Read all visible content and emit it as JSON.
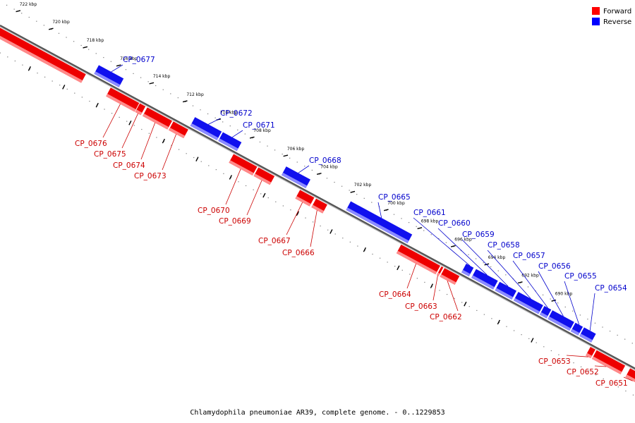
{
  "title": "Chlamydophila pneumoniae AR39, complete genome. - 0..1229853",
  "legend": {
    "forward": "Forward",
    "reverse": "Reverse",
    "forward_color": "#ff0000",
    "reverse_color": "#0000ff"
  },
  "colors": {
    "forward_fill": "#ee0000",
    "forward_shade": "#ff8a8a",
    "reverse_fill": "#1010ee",
    "reverse_shade": "#8a8aff",
    "forward_label": "#cc0000",
    "reverse_label": "#0000cc"
  },
  "kbp_ticks": [
    {
      "label": "722 kbp"
    },
    {
      "label": "720 kbp"
    },
    {
      "label": "718 kbp"
    },
    {
      "label": "716 kbp"
    },
    {
      "label": "714 kbp"
    },
    {
      "label": "712 kbp"
    },
    {
      "label": "710 kbp"
    },
    {
      "label": "708 kbp"
    },
    {
      "label": "706 kbp"
    },
    {
      "label": "704 kbp"
    },
    {
      "label": "702 kbp"
    },
    {
      "label": "700 kbp"
    },
    {
      "label": "698 kbp"
    },
    {
      "label": "696 kbp"
    },
    {
      "label": "694 kbp"
    },
    {
      "label": "692 kbp"
    },
    {
      "label": "690 kbp"
    }
  ],
  "genes": [
    {
      "name": "CP_0677",
      "strand": "reverse"
    },
    {
      "name": "CP_0676",
      "strand": "forward"
    },
    {
      "name": "CP_0675",
      "strand": "forward"
    },
    {
      "name": "CP_0674",
      "strand": "forward"
    },
    {
      "name": "CP_0673",
      "strand": "forward"
    },
    {
      "name": "CP_0672",
      "strand": "reverse"
    },
    {
      "name": "CP_0671",
      "strand": "reverse"
    },
    {
      "name": "CP_0670",
      "strand": "forward"
    },
    {
      "name": "CP_0669",
      "strand": "forward"
    },
    {
      "name": "CP_0668",
      "strand": "reverse"
    },
    {
      "name": "CP_0667",
      "strand": "forward"
    },
    {
      "name": "CP_0666",
      "strand": "forward"
    },
    {
      "name": "CP_0665",
      "strand": "reverse"
    },
    {
      "name": "CP_0664",
      "strand": "forward"
    },
    {
      "name": "CP_0663",
      "strand": "forward"
    },
    {
      "name": "CP_0662",
      "strand": "forward"
    },
    {
      "name": "CP_0661",
      "strand": "reverse"
    },
    {
      "name": "CP_0660",
      "strand": "reverse"
    },
    {
      "name": "CP_0659",
      "strand": "reverse"
    },
    {
      "name": "CP_0658",
      "strand": "reverse"
    },
    {
      "name": "CP_0657",
      "strand": "reverse"
    },
    {
      "name": "CP_0656",
      "strand": "reverse"
    },
    {
      "name": "CP_0655",
      "strand": "reverse"
    },
    {
      "name": "CP_0654",
      "strand": "reverse"
    },
    {
      "name": "CP_0653",
      "strand": "forward"
    },
    {
      "name": "CP_0652",
      "strand": "forward"
    },
    {
      "name": "CP_0651",
      "strand": "forward"
    }
  ]
}
